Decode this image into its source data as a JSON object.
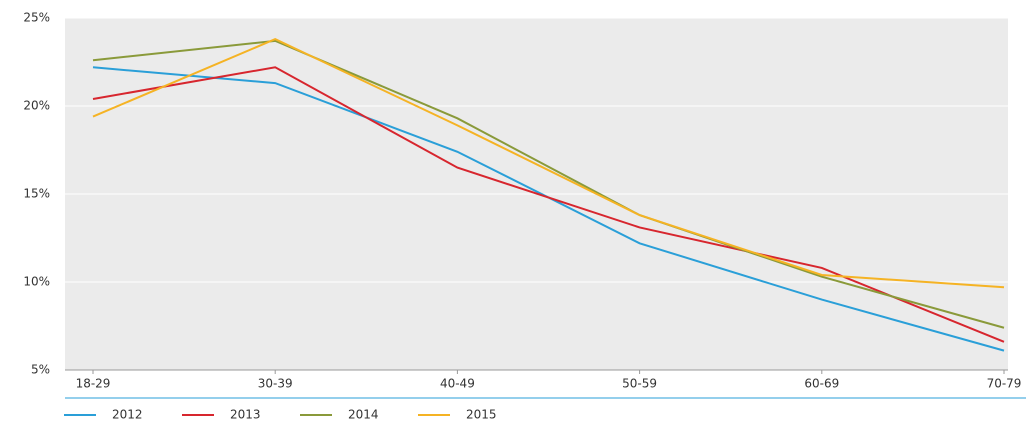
{
  "chart_data": {
    "type": "line",
    "categories": [
      "18-29",
      "30-39",
      "40-49",
      "50-59",
      "60-69",
      "70-79"
    ],
    "series": [
      {
        "name": "2012",
        "color": "#2a9fd8",
        "values": [
          22.2,
          21.3,
          17.4,
          12.2,
          9.0,
          6.1
        ]
      },
      {
        "name": "2013",
        "color": "#d7262e",
        "values": [
          20.4,
          22.2,
          16.5,
          13.1,
          10.8,
          6.6
        ]
      },
      {
        "name": "2014",
        "color": "#8a9a3a",
        "values": [
          22.6,
          23.7,
          19.3,
          13.8,
          10.3,
          7.4
        ]
      },
      {
        "name": "2015",
        "color": "#f5b324",
        "values": [
          19.4,
          23.8,
          18.9,
          13.8,
          10.4,
          9.7
        ]
      }
    ],
    "ylim": [
      5,
      25
    ],
    "yticks": [
      {
        "value": 5,
        "label": "5%"
      },
      {
        "value": 10,
        "label": "10%"
      },
      {
        "value": 15,
        "label": "15%"
      },
      {
        "value": 20,
        "label": "20%"
      },
      {
        "value": 25,
        "label": "25%"
      }
    ],
    "grid": true
  }
}
